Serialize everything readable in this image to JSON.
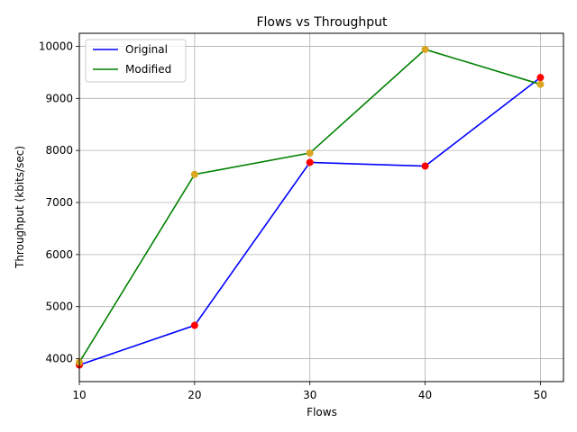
{
  "chart_data": {
    "type": "line",
    "title": "Flows vs Throughput",
    "xlabel": "Flows",
    "ylabel": "Throughput (kbits/sec)",
    "x": [
      10,
      20,
      30,
      40,
      50
    ],
    "xlim": [
      10,
      52
    ],
    "ylim": [
      3560,
      10250
    ],
    "xticks": [
      10,
      20,
      30,
      40,
      50
    ],
    "yticks": [
      4000,
      5000,
      6000,
      7000,
      8000,
      9000,
      10000
    ],
    "grid": true,
    "legend_position": "upper-left",
    "series": [
      {
        "name": "Original",
        "values": [
          3880,
          4640,
          7770,
          7700,
          9400
        ],
        "line_color": "#0000ff",
        "marker_color": "#ff0000"
      },
      {
        "name": "Modified",
        "values": [
          3930,
          7540,
          7950,
          9940,
          9270
        ],
        "line_color": "#008000",
        "marker_color": "#daa520"
      }
    ]
  }
}
